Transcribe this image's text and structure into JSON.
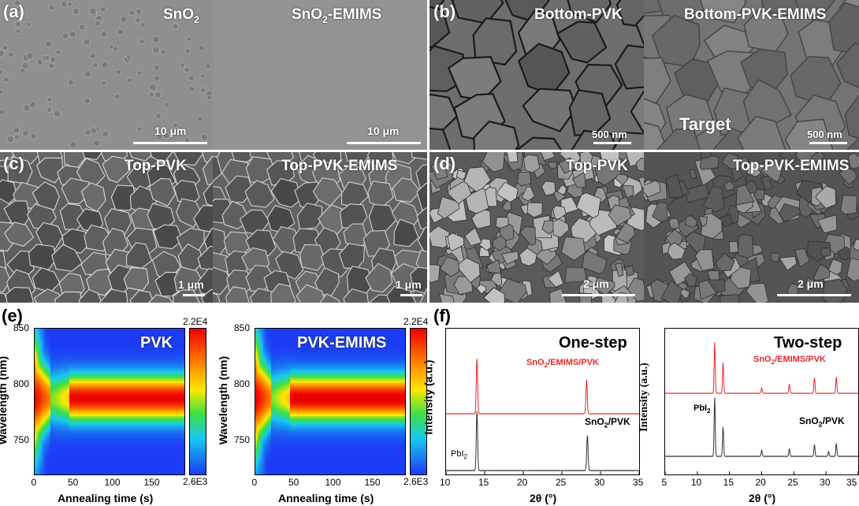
{
  "panels": {
    "a": {
      "label": "(a)",
      "left_title": "SnO2",
      "left_sub": "2",
      "right_title": "SnO2-EMIMS",
      "left_scale": "10 μm",
      "right_scale": "10 μm"
    },
    "b": {
      "label": "(b)",
      "left_title": "Bottom-PVK",
      "right_title": "Bottom-PVK-EMIMS",
      "left_scale": "500 nm",
      "right_scale": "500 nm",
      "annotation": "Target"
    },
    "c": {
      "label": "(c)",
      "left_title": "Top-PVK",
      "right_title": "Top-PVK-EMIMS",
      "left_scale": "1 μm",
      "right_scale": "1 μm"
    },
    "d": {
      "label": "(d)",
      "left_title": "Top-PVK",
      "right_title": "Top-PVK-EMIMS",
      "left_scale": "2 μm",
      "right_scale": "2 μm"
    },
    "e": {
      "label": "(e)",
      "left_title": "PVK",
      "right_title": "PVK-EMIMS",
      "ylabel": "Wavelength (nm)",
      "xlabel": "Annealing time (s)",
      "cbar_max": "2.2E4",
      "cbar_min": "2.6E3"
    },
    "f": {
      "label": "(f)",
      "left_title": "One-step",
      "right_title": "Two-step",
      "ylabel_left": "Intensity (a.u.)",
      "ylabel_right": "Intensity (a.u.)",
      "xlabel": "2θ (°)",
      "series_top": "SnO2/EMIMS/PVK",
      "series_bottom": "SnO2/PVK",
      "pbi2": "PbI2"
    }
  },
  "colors": {
    "red": "#e8262a",
    "dark": "#333333"
  },
  "chart_data": [
    {
      "type": "heatmap",
      "title": "PVK",
      "xlabel": "Annealing time (s)",
      "ylabel": "Wavelength (nm)",
      "xlim": [
        0,
        190
      ],
      "ylim": [
        720,
        850
      ],
      "x_ticks": [
        0,
        50,
        100,
        150
      ],
      "y_ticks": [
        750,
        800,
        850
      ],
      "colorbar": {
        "min": "2.6E3",
        "max": "2.2E4"
      }
    },
    {
      "type": "heatmap",
      "title": "PVK-EMIMS",
      "xlabel": "Annealing time (s)",
      "ylabel": "Wavelength (nm)",
      "xlim": [
        0,
        190
      ],
      "ylim": [
        720,
        850
      ],
      "x_ticks": [
        0,
        50,
        100,
        150
      ],
      "y_ticks": [
        750,
        800,
        850
      ],
      "colorbar": {
        "min": "2.6E3",
        "max": "2.2E4"
      }
    },
    {
      "type": "line",
      "title": "One-step",
      "xlabel": "2θ (°)",
      "ylabel": "Intensity (a.u.)",
      "xlim": [
        10,
        35
      ],
      "x_ticks": [
        10,
        15,
        20,
        25,
        30,
        35
      ],
      "series": [
        {
          "name": "SnO2/EMIMS/PVK",
          "peaks": [
            [
              14.0,
              1.0
            ],
            [
              28.2,
              0.62
            ]
          ]
        },
        {
          "name": "SnO2/PVK",
          "peaks": [
            [
              14.0,
              1.0
            ],
            [
              28.3,
              0.6
            ]
          ]
        }
      ],
      "annotations": [
        {
          "text": "PbI2",
          "x": 12.7
        }
      ]
    },
    {
      "type": "line",
      "title": "Two-step",
      "xlabel": "2θ (°)",
      "ylabel": "Intensity (a.u.)",
      "xlim": [
        5,
        35
      ],
      "x_ticks": [
        5,
        10,
        15,
        20,
        25,
        30,
        35
      ],
      "series": [
        {
          "name": "SnO2/EMIMS/PVK",
          "peaks": [
            [
              12.7,
              1.0
            ],
            [
              14.0,
              0.6
            ],
            [
              20.0,
              0.1
            ],
            [
              24.3,
              0.18
            ],
            [
              28.2,
              0.3
            ],
            [
              31.6,
              0.32
            ]
          ]
        },
        {
          "name": "SnO2/PVK",
          "peaks": [
            [
              12.7,
              1.0
            ],
            [
              14.0,
              0.5
            ],
            [
              20.0,
              0.1
            ],
            [
              24.3,
              0.12
            ],
            [
              28.2,
              0.2
            ],
            [
              30.4,
              0.08
            ],
            [
              31.6,
              0.22
            ]
          ]
        }
      ],
      "annotations": [
        {
          "text": "PbI2",
          "x": 12.7
        }
      ]
    }
  ]
}
